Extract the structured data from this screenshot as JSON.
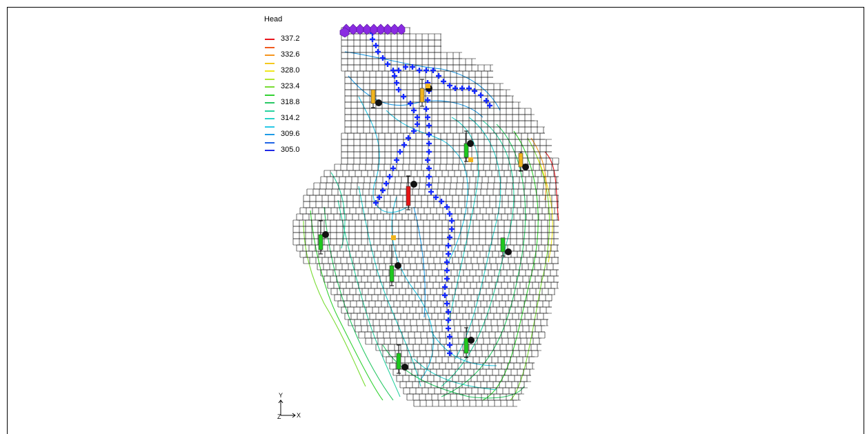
{
  "legend": {
    "title": "Head",
    "items": [
      {
        "label": "337.2",
        "color": "#e8141c"
      },
      {
        "label": "",
        "color": "#f05a1e"
      },
      {
        "label": "332.6",
        "color": "#f5941e"
      },
      {
        "label": "",
        "color": "#f5c81e"
      },
      {
        "label": "328.0",
        "color": "#f0e61e"
      },
      {
        "label": "",
        "color": "#b4e632"
      },
      {
        "label": "323.4",
        "color": "#78dc32"
      },
      {
        "label": "",
        "color": "#32d232"
      },
      {
        "label": "318.8",
        "color": "#28c864"
      },
      {
        "label": "",
        "color": "#28d2a0"
      },
      {
        "label": "314.2",
        "color": "#28d2c8"
      },
      {
        "label": "",
        "color": "#28c8e6"
      },
      {
        "label": "309.6",
        "color": "#1e9be6"
      },
      {
        "label": "",
        "color": "#1e64e6"
      },
      {
        "label": "305.0",
        "color": "#1e28e6"
      }
    ]
  },
  "axes": {
    "y_label": "Y",
    "z_label": "Z",
    "x_label": "X"
  },
  "colors": {
    "grid": "#000000",
    "river": "#1428ff",
    "constant_head": "#8a2be2",
    "well_screen_green": "#1ec81e",
    "well_screen_orange": "#f0b41e",
    "well_screen_red": "#e61414"
  },
  "icons": [
    "well-icon",
    "river-cell-icon",
    "constant-head-cell-icon",
    "axis-triad-icon"
  ]
}
